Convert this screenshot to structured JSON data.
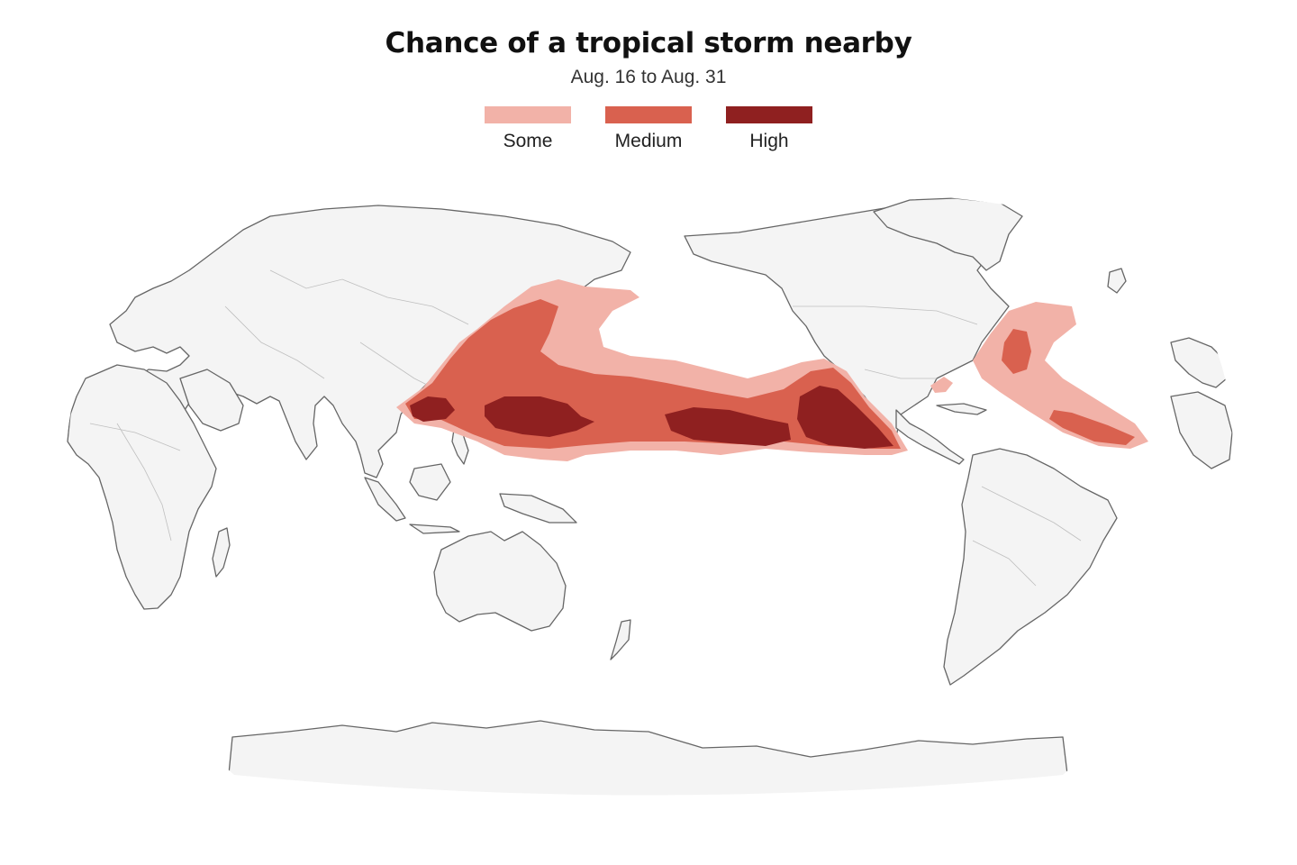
{
  "header": {
    "title": "Chance of a tropical storm nearby",
    "subtitle": "Aug. 16 to Aug. 31"
  },
  "legend": [
    {
      "label": "Some",
      "color": "#f2b2a8"
    },
    {
      "label": "Medium",
      "color": "#d9614f"
    },
    {
      "label": "High",
      "color": "#8f2020"
    }
  ],
  "map": {
    "projection": "pacific-centered world map",
    "land_color": "#f4f4f4",
    "outline_color": "#666666"
  }
}
